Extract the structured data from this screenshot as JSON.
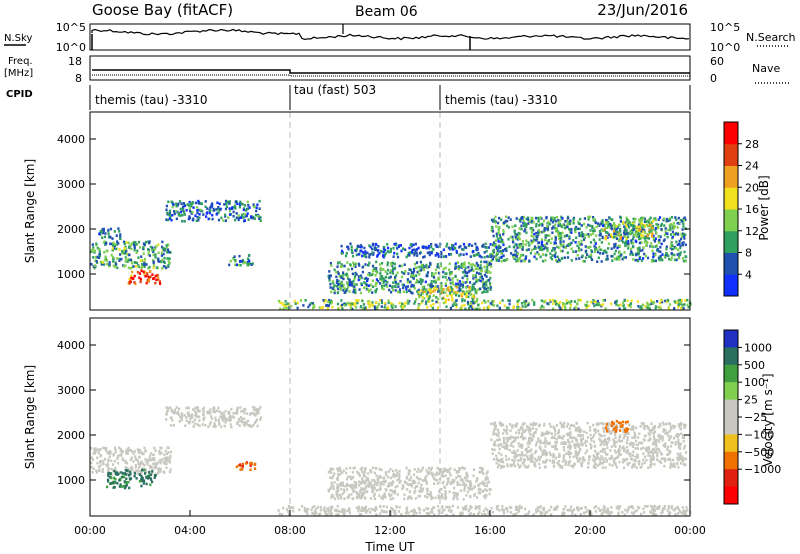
{
  "header": {
    "station": "Goose Bay (fitACF)",
    "beam": "Beam 06",
    "date": "23/Jun/2016"
  },
  "summary_panels": {
    "nsky": {
      "left_label": "N.Sky",
      "ticks": [
        "10^5",
        "10^0"
      ],
      "right_label": "N.Search",
      "right_ticks": [
        "10^5",
        "10^0"
      ]
    },
    "freq": {
      "left_label_1": "Freq.",
      "left_label_2": "[MHz]",
      "ticks": [
        "18",
        "8"
      ],
      "right_label": "Nave",
      "right_ticks": [
        "60",
        "0"
      ]
    },
    "cpid": {
      "label": "CPID",
      "segments": [
        {
          "name": "themis (tau) -3310",
          "start_hour": 0,
          "end_hour": 8
        },
        {
          "name": "tau (fast) 503",
          "start_hour": 8,
          "end_hour": 14
        },
        {
          "name": "themis (tau) -3310",
          "start_hour": 14,
          "end_hour": 24
        }
      ]
    }
  },
  "chart_data": [
    {
      "type": "heatmap",
      "name": "power",
      "xlabel": "",
      "ylabel": "Slant Range [km]",
      "xlim": [
        0,
        24
      ],
      "ylim": [
        200,
        4600
      ],
      "yticks": [
        "1000",
        "2000",
        "3000",
        "4000"
      ],
      "colorbar": {
        "label": "Power [dB]",
        "ticks": [
          "4",
          "8",
          "12",
          "16",
          "20",
          "24",
          "28"
        ],
        "range": [
          0,
          30
        ],
        "colors": [
          "#1030ff",
          "#2050b0",
          "#30a060",
          "#80d050",
          "#f0e020",
          "#f0a020",
          "#e04010",
          "#ff0000"
        ]
      },
      "regions": [
        {
          "t0": 0.0,
          "t1": 3.2,
          "r0": 1150,
          "r1": 1750,
          "value": 10
        },
        {
          "t0": 1.5,
          "t1": 2.8,
          "r0": 800,
          "r1": 1100,
          "value": 26
        },
        {
          "t0": 0.3,
          "t1": 1.2,
          "r0": 1800,
          "r1": 2050,
          "value": 6
        },
        {
          "t0": 3.0,
          "t1": 6.8,
          "r0": 2200,
          "r1": 2650,
          "value": 7
        },
        {
          "t0": 5.5,
          "t1": 6.5,
          "r0": 1200,
          "r1": 1450,
          "value": 8
        },
        {
          "t0": 9.5,
          "t1": 16.0,
          "r0": 600,
          "r1": 1300,
          "value": 9
        },
        {
          "t0": 13.0,
          "t1": 15.5,
          "r0": 450,
          "r1": 750,
          "value": 15
        },
        {
          "t0": 10.0,
          "t1": 16.5,
          "r0": 1400,
          "r1": 1700,
          "value": 6
        },
        {
          "t0": 16.0,
          "t1": 23.8,
          "r0": 1300,
          "r1": 2300,
          "value": 9
        },
        {
          "t0": 20.5,
          "t1": 22.5,
          "r0": 1800,
          "r1": 2200,
          "value": 14
        },
        {
          "t0": 7.5,
          "t1": 24.0,
          "r0": 250,
          "r1": 450,
          "value": 12
        }
      ]
    },
    {
      "type": "heatmap",
      "name": "velocity",
      "xlabel": "Time UT",
      "ylabel": "Slant Range [km]",
      "xlim": [
        0,
        24
      ],
      "ylim": [
        200,
        4600
      ],
      "xticks": [
        "00:00",
        "04:00",
        "08:00",
        "12:00",
        "16:00",
        "20:00",
        "00:00"
      ],
      "yticks": [
        "1000",
        "2000",
        "3000",
        "4000"
      ],
      "colorbar": {
        "label": "Velocity [m s⁻¹]",
        "ticks": [
          "1000",
          "500",
          "100",
          "25",
          "−25",
          "−100",
          "−500",
          "−1000"
        ],
        "colors": [
          "#2030c0",
          "#2a7060",
          "#40a040",
          "#80d050",
          "#c8c8c0",
          "#c8c8c0",
          "#f0c020",
          "#f07000",
          "#e02010",
          "#ff0000"
        ]
      },
      "regions": [
        {
          "t0": 0.0,
          "t1": 3.2,
          "r0": 1150,
          "r1": 1750,
          "value": 0
        },
        {
          "t0": 0.6,
          "t1": 2.6,
          "r0": 850,
          "r1": 1250,
          "value": 120
        },
        {
          "t0": 3.0,
          "t1": 6.8,
          "r0": 2200,
          "r1": 2650,
          "value": 0
        },
        {
          "t0": 5.8,
          "t1": 6.6,
          "r0": 1250,
          "r1": 1450,
          "value": -400
        },
        {
          "t0": 9.5,
          "t1": 16.0,
          "r0": 600,
          "r1": 1300,
          "value": 0
        },
        {
          "t0": 16.0,
          "t1": 23.8,
          "r0": 1300,
          "r1": 2300,
          "value": 0
        },
        {
          "t0": 20.5,
          "t1": 21.5,
          "r0": 2100,
          "r1": 2350,
          "value": -300
        },
        {
          "t0": 7.5,
          "t1": 24.0,
          "r0": 250,
          "r1": 450,
          "value": 0
        }
      ]
    }
  ]
}
